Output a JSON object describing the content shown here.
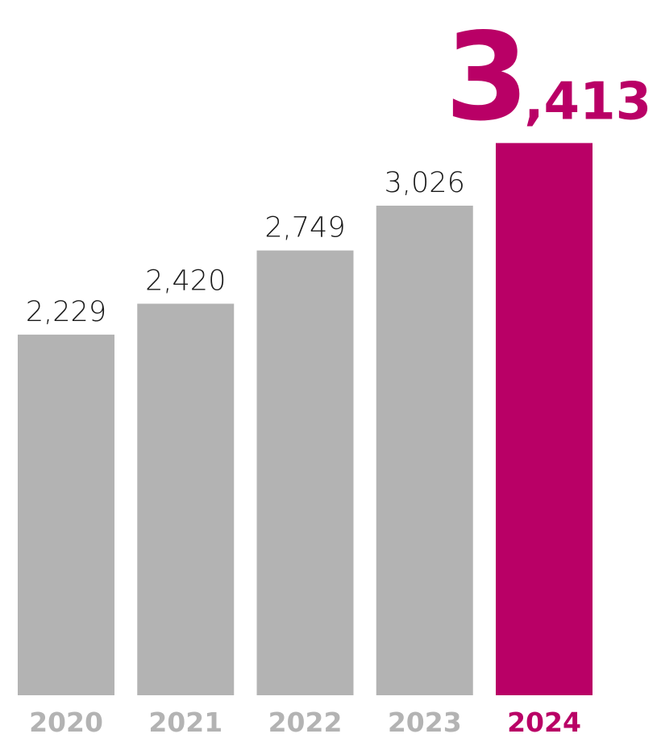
{
  "colors": {
    "bar_default": "#b3b3b3",
    "accent": "#b90066",
    "year_default": "#b3b3b3",
    "value_text": "#1a1a1a"
  },
  "chart_data": {
    "type": "bar",
    "categories": [
      "2020",
      "2021",
      "2022",
      "2023",
      "2024"
    ],
    "values": [
      2229,
      2420,
      2749,
      3026,
      3413
    ],
    "value_labels": [
      "2,229",
      "2,420",
      "2,749",
      "3,026",
      "3,413"
    ],
    "highlight_index": 4,
    "title": "",
    "xlabel": "",
    "ylabel": "",
    "grid": false,
    "legend": "none"
  }
}
